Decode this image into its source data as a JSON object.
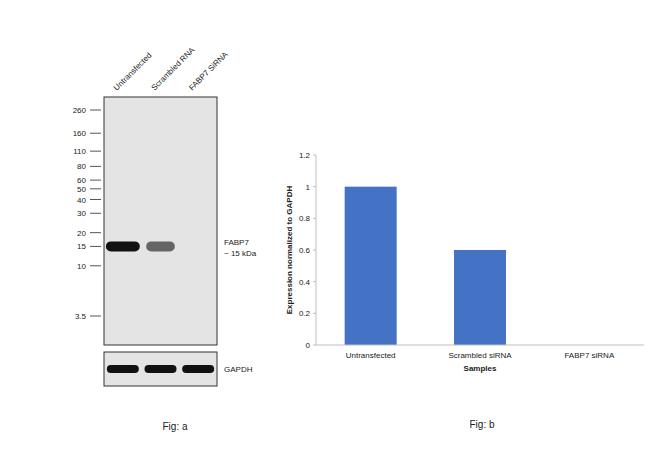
{
  "blot": {
    "lanes": [
      "Untransfected",
      "Scrambled RNA",
      "FABP7 SiRNA"
    ],
    "markers": [
      260,
      160,
      110,
      80,
      60,
      50,
      40,
      30,
      20,
      15,
      10,
      3.5
    ],
    "band_name": "FABP7",
    "band_size_label": "~ 15 kDa",
    "band_kda": 15,
    "band_intensity": [
      1,
      0.6,
      0
    ],
    "loading_name": "GAPDH",
    "loading_intensity": [
      1,
      1,
      1
    ],
    "caption": "Fig: a"
  },
  "chart_data": {
    "type": "bar",
    "categories": [
      "Untransfected",
      "Scrambled siRNA",
      "FABP7 siRNA"
    ],
    "values": [
      1,
      0.6,
      0
    ],
    "color": "#4472c4",
    "xlabel": "Samples",
    "ylabel": "Expression normalized to GAPDH",
    "ylim": [
      0,
      1.2
    ],
    "yticks": [
      0,
      0.2,
      0.4,
      0.6,
      0.8,
      1,
      1.2
    ],
    "grid": false,
    "caption": "Fig: b"
  }
}
